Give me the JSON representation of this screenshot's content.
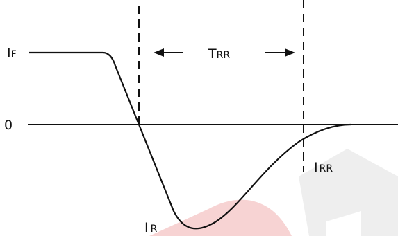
{
  "labels": {
    "forward_current": {
      "main": "I",
      "sub": "F"
    },
    "zero": "0",
    "reverse_recovery_time": {
      "main": "T",
      "sub": "RR"
    },
    "reverse_recovery_current": {
      "main": "I",
      "sub": "RR"
    },
    "reverse_current": {
      "main": "I",
      "sub": "R"
    }
  },
  "colors": {
    "curve": "#111111",
    "axis": "#111111",
    "dashed_marker": "#111111",
    "arrow": "#111111",
    "watermark_red": "#f7d3d3",
    "watermark_gray": "#eeeeee"
  }
}
